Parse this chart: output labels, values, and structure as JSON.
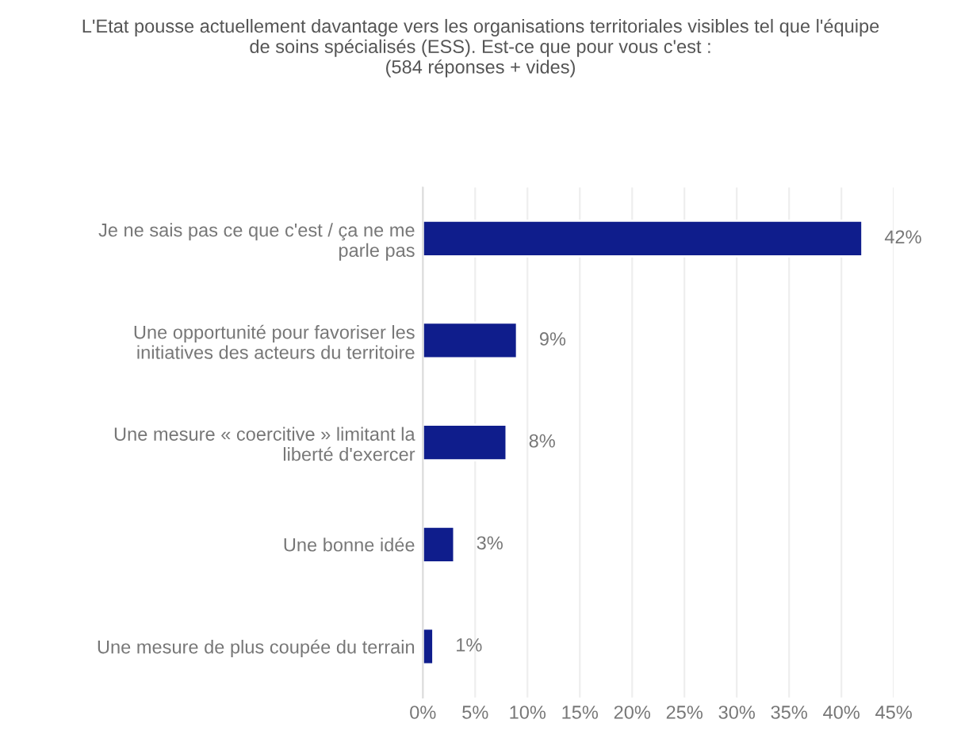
{
  "chart_data": {
    "type": "bar",
    "orientation": "horizontal",
    "title": "L'Etat pousse actuellement davantage vers les organisations territoriales visibles tel que l'équipe\nde soins spécialisés (ESS). Est-ce que pour vous c'est :\n(584 réponses + vides)",
    "categories": [
      "Je ne sais pas ce que c'est / ça ne me\nparle pas",
      "Une opportunité pour favoriser les\ninitiatives des acteurs du territoire",
      "Une mesure « coercitive » limitant la\nliberté d'exercer",
      "Une bonne idée",
      "Une mesure de plus coupée du terrain"
    ],
    "values": [
      42,
      9,
      8,
      3,
      1
    ],
    "value_labels": [
      "42%",
      "9%",
      "8%",
      "3%",
      "1%"
    ],
    "color": "#0f1d8c",
    "xlim": [
      0,
      45
    ],
    "xticks": [
      {
        "value": 0,
        "label": "0%"
      },
      {
        "value": 5,
        "label": "5%"
      },
      {
        "value": 10,
        "label": "10%"
      },
      {
        "value": 15,
        "label": "15%"
      },
      {
        "value": 20,
        "label": "20%"
      },
      {
        "value": 25,
        "label": "25%"
      },
      {
        "value": 30,
        "label": "30%"
      },
      {
        "value": 35,
        "label": "35%"
      },
      {
        "value": 40,
        "label": "40%"
      },
      {
        "value": 45,
        "label": "45%"
      }
    ],
    "grid": "x"
  }
}
